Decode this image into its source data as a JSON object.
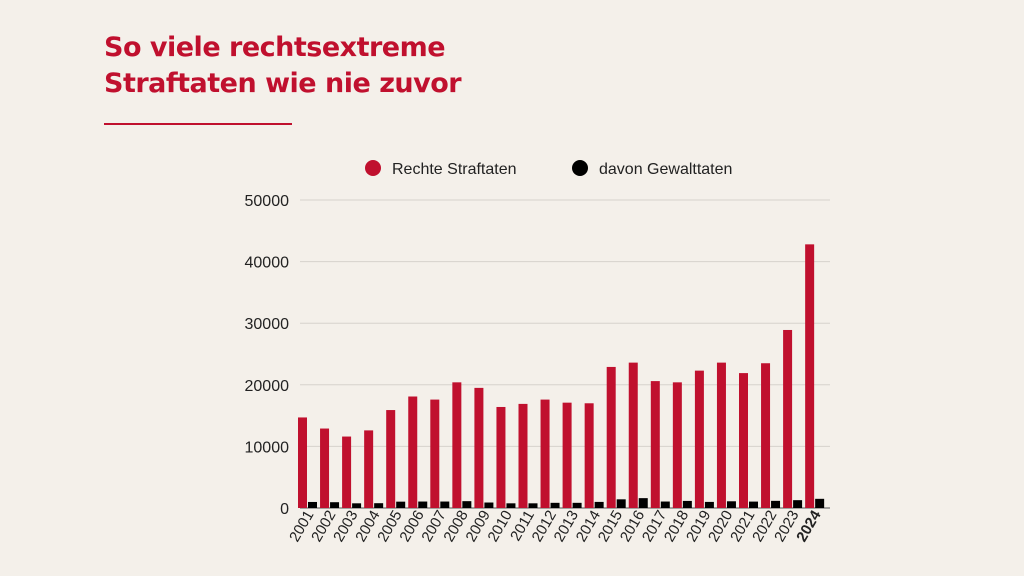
{
  "header": {
    "title_line1": "So viele rechtsextreme",
    "title_line2": "Straftaten wie nie zuvor"
  },
  "colors": {
    "accent": "#c0102e",
    "series_violent": "#000000",
    "background": "#f4f0ea",
    "grid": "#d6d2cc"
  },
  "chart_data": {
    "type": "bar",
    "categories": [
      "2001",
      "2002",
      "2003",
      "2004",
      "2005",
      "2006",
      "2007",
      "2008",
      "2009",
      "2010",
      "2011",
      "2012",
      "2013",
      "2014",
      "2015",
      "2016",
      "2017",
      "2018",
      "2019",
      "2020",
      "2021",
      "2022",
      "2023",
      "2024"
    ],
    "highlight_category": "2024",
    "series": [
      {
        "name": "Rechte Straftaten",
        "color": "#c0102e",
        "values": [
          14700,
          12900,
          11600,
          12600,
          15900,
          18100,
          17600,
          20400,
          19500,
          16400,
          16900,
          17600,
          17100,
          17000,
          22900,
          23600,
          20600,
          20400,
          22300,
          23600,
          21900,
          23500,
          28900,
          42800
        ]
      },
      {
        "name": "davon Gewalttaten",
        "color": "#000000",
        "values": [
          980,
          940,
          760,
          780,
          1030,
          1050,
          1050,
          1110,
          890,
          760,
          760,
          840,
          840,
          990,
          1410,
          1600,
          1050,
          1150,
          990,
          1090,
          1040,
          1160,
          1270,
          1490
        ]
      }
    ],
    "ylim": [
      0,
      50000
    ],
    "yticks": [
      0,
      10000,
      20000,
      30000,
      40000,
      50000
    ],
    "grid": true,
    "legend_position": "top"
  }
}
